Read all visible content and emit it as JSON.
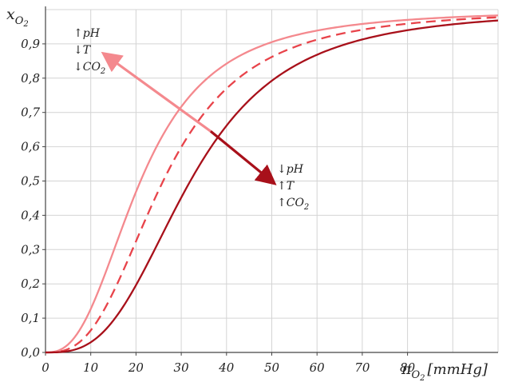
{
  "chart_data": {
    "type": "line",
    "xlabel": {
      "symbol": "π",
      "subscript": "O",
      "subsubscript": "2",
      "unit": "[mmHg]"
    },
    "ylabel": {
      "symbol": "x",
      "subscript": "O",
      "subsubscript": "2"
    },
    "xlim": [
      0,
      100
    ],
    "ylim": [
      0,
      1.0
    ],
    "x_ticks": [
      "0",
      "10",
      "20",
      "30",
      "40",
      "50",
      "60",
      "70",
      "80"
    ],
    "y_ticks": [
      "0,0",
      "0,1",
      "0,2",
      "0,3",
      "0,4",
      "0,5",
      "0,6",
      "0,7",
      "0,8",
      "0,9"
    ],
    "grid": true,
    "series": [
      {
        "style": "solid",
        "color": "#f4898e",
        "p50": 21,
        "hill_n": 2.6,
        "x": [
          0,
          5,
          10,
          15,
          20,
          25,
          30,
          35,
          40,
          50,
          60,
          70,
          80,
          90,
          100
        ],
        "y": [
          0.0,
          0.02,
          0.12,
          0.29,
          0.47,
          0.61,
          0.72,
          0.8,
          0.85,
          0.91,
          0.95,
          0.96,
          0.97,
          0.98,
          0.99
        ]
      },
      {
        "style": "dashed",
        "color": "#e8434a",
        "p50": 26,
        "hill_n": 2.8,
        "x": [
          0,
          5,
          10,
          15,
          20,
          25,
          30,
          35,
          40,
          50,
          60,
          70,
          80,
          90,
          100
        ],
        "y": [
          0.0,
          0.01,
          0.07,
          0.18,
          0.32,
          0.47,
          0.62,
          0.72,
          0.78,
          0.88,
          0.93,
          0.95,
          0.97,
          0.98,
          0.98
        ]
      },
      {
        "style": "solid",
        "color": "#a8101a",
        "p50": 32,
        "hill_n": 3.0,
        "x": [
          0,
          5,
          10,
          15,
          20,
          25,
          30,
          35,
          40,
          50,
          60,
          70,
          80,
          90,
          100
        ],
        "y": [
          0.0,
          0.0,
          0.03,
          0.1,
          0.2,
          0.33,
          0.47,
          0.59,
          0.68,
          0.81,
          0.88,
          0.92,
          0.94,
          0.96,
          0.97
        ]
      }
    ],
    "annotations": [
      {
        "lines": [
          "↑pH",
          "↓T",
          "↓CO2"
        ],
        "arrow_color": "#f4898e",
        "arrow_target": [
          12.5,
          0.875
        ]
      },
      {
        "lines": [
          "↓pH",
          "↑T",
          "↑CO2"
        ],
        "arrow_color": "#a8101a",
        "arrow_target": [
          51,
          0.49
        ]
      }
    ]
  }
}
